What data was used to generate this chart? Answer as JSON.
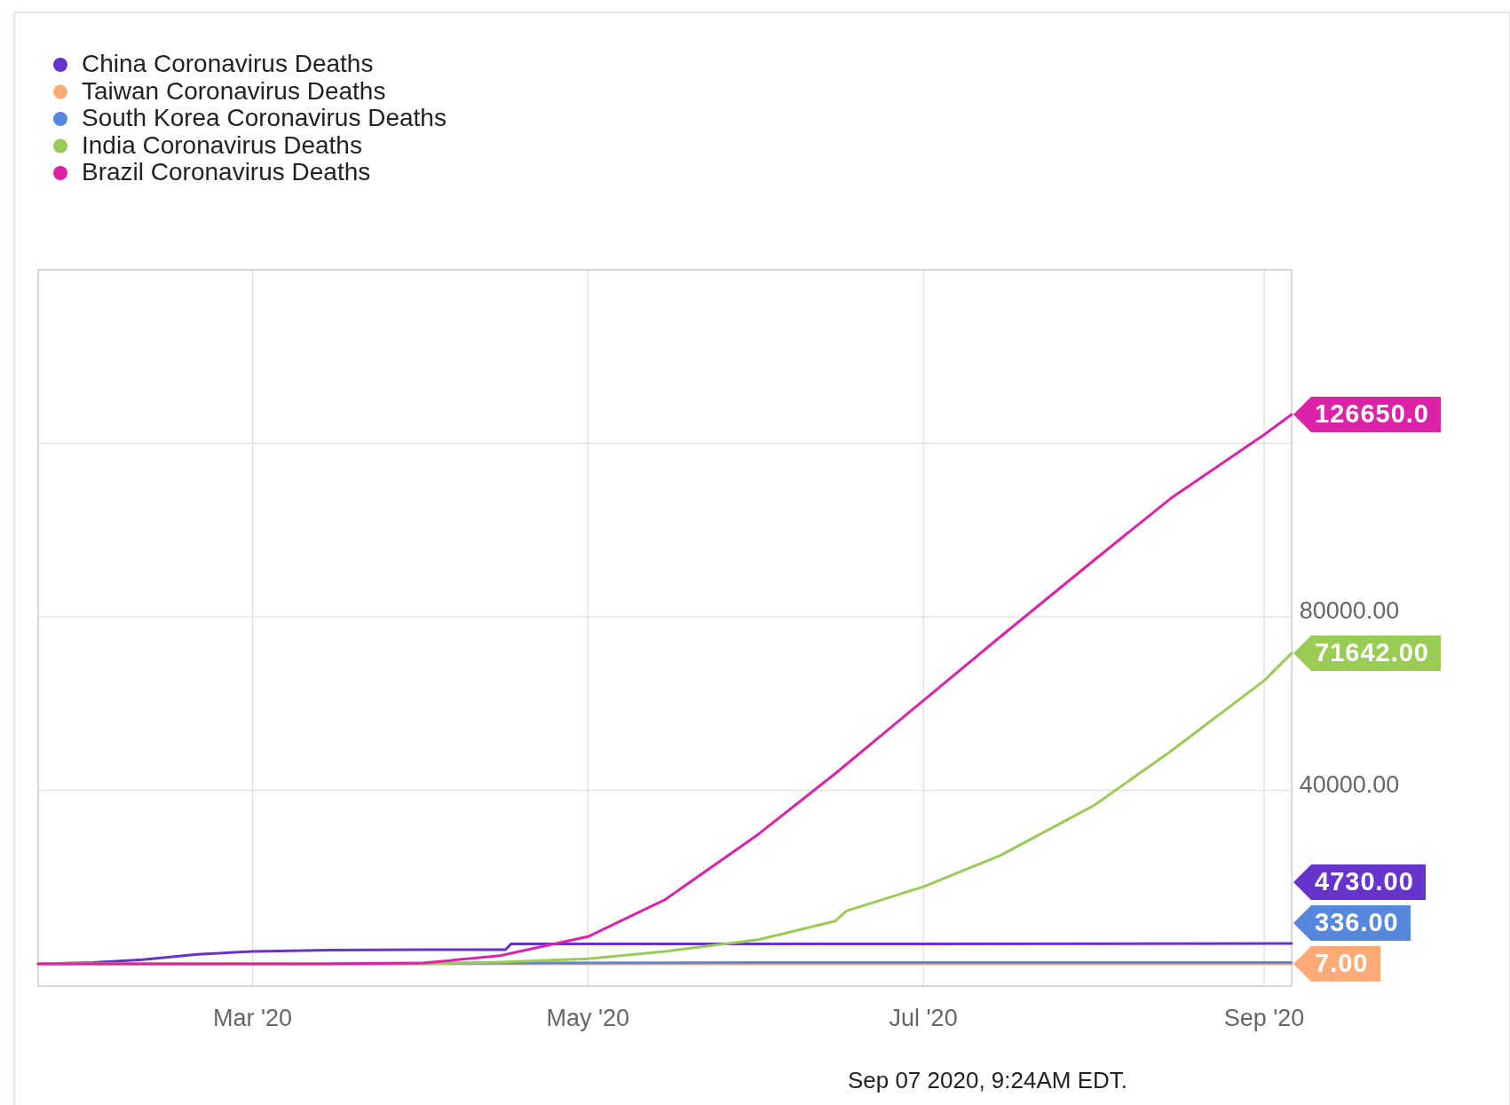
{
  "chart_data": {
    "type": "line",
    "xlim": [
      "2020-01-22",
      "2020-09-06"
    ],
    "xticks": [
      {
        "value": "2020-03-01",
        "label": "Mar '20"
      },
      {
        "value": "2020-05-01",
        "label": "May '20"
      },
      {
        "value": "2020-07-01",
        "label": "Jul '20"
      },
      {
        "value": "2020-09-01",
        "label": "Sep '20"
      }
    ],
    "ylim": [
      -5100,
      160000
    ],
    "yticks": [
      {
        "value": 40000,
        "label": "40000.00"
      },
      {
        "value": 80000,
        "label": "80000.00"
      },
      {
        "value": 120000,
        "label": null
      }
    ],
    "grid": true,
    "legend": "top left",
    "annotations": [
      "Sep 07 2020, 9:24AM EDT."
    ],
    "series": [
      {
        "name": "China Coronavirus Deaths",
        "color": "#6633cc",
        "x": [
          "2020-01-22",
          "2020-02-01",
          "2020-02-10",
          "2020-02-20",
          "2020-03-01",
          "2020-03-15",
          "2020-04-01",
          "2020-04-16",
          "2020-04-17",
          "2020-06-01",
          "2020-09-06"
        ],
        "values": [
          0,
          300,
          1000,
          2200,
          2900,
          3200,
          3300,
          3300,
          4600,
          4600,
          4730
        ],
        "value_labels": [
          null,
          null,
          null,
          null,
          null,
          null,
          null,
          null,
          null,
          null,
          "4730.00"
        ]
      },
      {
        "name": "Taiwan Coronavirus Deaths",
        "color": "#ffaa77",
        "x": [
          "2020-01-22",
          "2020-03-15",
          "2020-04-15",
          "2020-09-06"
        ],
        "values": [
          0,
          0,
          0,
          7
        ],
        "value_labels": [
          null,
          null,
          null,
          "7.00"
        ]
      },
      {
        "name": "South Korea Coronavirus Deaths",
        "color": "#5588dd",
        "x": [
          "2020-03-15",
          "2020-04-15",
          "2020-06-01",
          "2020-08-01",
          "2020-09-06"
        ],
        "values": [
          100,
          200,
          300,
          300,
          336
        ],
        "value_labels": [
          null,
          null,
          null,
          null,
          "336.00"
        ]
      },
      {
        "name": "India Coronavirus Deaths",
        "color": "#99cc55",
        "x": [
          "2020-01-22",
          "2020-03-15",
          "2020-04-01",
          "2020-04-15",
          "2020-05-01",
          "2020-05-15",
          "2020-06-01",
          "2020-06-15",
          "2020-06-17",
          "2020-07-01",
          "2020-07-15",
          "2020-08-01",
          "2020-08-15",
          "2020-09-01",
          "2020-09-06"
        ],
        "values": [
          0,
          0,
          0,
          400,
          1200,
          2900,
          5600,
          9900,
          12200,
          17800,
          25000,
          36500,
          49000,
          65300,
          71642
        ],
        "value_labels": [
          null,
          null,
          null,
          null,
          null,
          null,
          null,
          null,
          null,
          null,
          null,
          null,
          null,
          null,
          "71642.00"
        ]
      },
      {
        "name": "Brazil Coronavirus Deaths",
        "color": "#dd22aa",
        "x": [
          "2020-01-22",
          "2020-03-15",
          "2020-04-01",
          "2020-04-15",
          "2020-05-01",
          "2020-05-15",
          "2020-06-01",
          "2020-06-15",
          "2020-07-01",
          "2020-07-15",
          "2020-08-01",
          "2020-08-15",
          "2020-09-01",
          "2020-09-06"
        ],
        "values": [
          0,
          0,
          200,
          1900,
          6300,
          14800,
          29900,
          43900,
          60700,
          75400,
          93000,
          107300,
          122000,
          126650
        ],
        "value_labels": [
          null,
          null,
          null,
          null,
          null,
          null,
          null,
          null,
          null,
          null,
          null,
          null,
          null,
          "126650.0"
        ]
      }
    ]
  }
}
